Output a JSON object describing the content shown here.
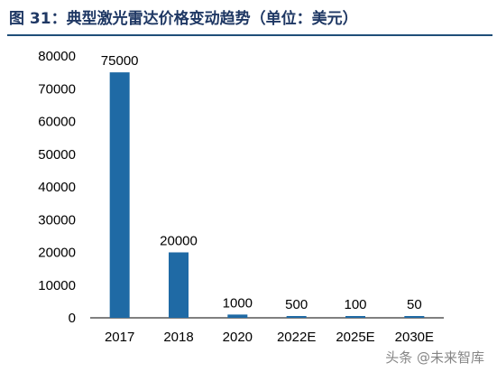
{
  "figure_title": "图 31：典型激光雷达价格变动趋势（单位：美元）",
  "watermark": "头条 @未来智库",
  "chart_data": {
    "type": "bar",
    "title": "图 31：典型激光雷达价格变动趋势（单位：美元）",
    "categories": [
      "2017",
      "2018",
      "2020",
      "2022E",
      "2025E",
      "2030E"
    ],
    "values": [
      75000,
      20000,
      1000,
      500,
      100,
      50
    ],
    "data_labels": [
      "75000",
      "20000",
      "1000",
      "500",
      "100",
      "50"
    ],
    "yticks": [
      0,
      10000,
      20000,
      30000,
      40000,
      50000,
      60000,
      70000,
      80000
    ],
    "ylim": [
      0,
      80000
    ],
    "xlabel": "",
    "ylabel": "",
    "grid": false,
    "legend": "none",
    "bar_color": "#1f6aa5"
  }
}
